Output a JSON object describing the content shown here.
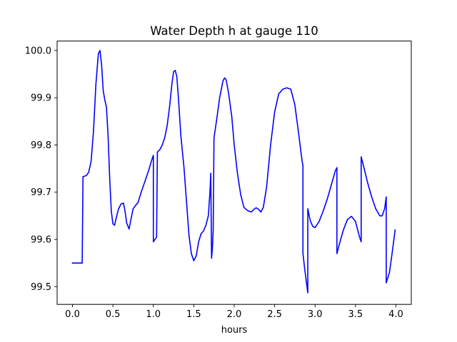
{
  "chart_data": {
    "type": "line",
    "title": "Water Depth h at gauge 110",
    "xlabel": "hours",
    "ylabel": "",
    "xlim": [
      -0.19,
      4.19
    ],
    "ylim": [
      99.4625,
      100.02
    ],
    "grid": false,
    "xticks": [
      0.0,
      0.5,
      1.0,
      1.5,
      2.0,
      2.5,
      3.0,
      3.5,
      4.0
    ],
    "xtick_labels": [
      "0.0",
      "0.5",
      "1.0",
      "1.5",
      "2.0",
      "2.5",
      "3.0",
      "3.5",
      "4.0"
    ],
    "yticks": [
      99.5,
      99.6,
      99.7,
      99.8,
      99.9,
      100.0
    ],
    "ytick_labels": [
      "99.5",
      "99.6",
      "99.7",
      "99.8",
      "99.9",
      "100.0"
    ],
    "series": [
      {
        "color": "#0000ff",
        "points": [
          [
            0.0,
            99.55
          ],
          [
            0.12,
            99.55
          ],
          [
            0.13,
            99.733
          ],
          [
            0.17,
            99.735
          ],
          [
            0.2,
            99.742
          ],
          [
            0.23,
            99.765
          ],
          [
            0.26,
            99.83
          ],
          [
            0.29,
            99.93
          ],
          [
            0.32,
            99.993
          ],
          [
            0.34,
            100.0
          ],
          [
            0.36,
            99.97
          ],
          [
            0.38,
            99.915
          ],
          [
            0.4,
            99.895
          ],
          [
            0.42,
            99.88
          ],
          [
            0.44,
            99.82
          ],
          [
            0.46,
            99.73
          ],
          [
            0.48,
            99.66
          ],
          [
            0.5,
            99.633
          ],
          [
            0.52,
            99.63
          ],
          [
            0.54,
            99.645
          ],
          [
            0.57,
            99.665
          ],
          [
            0.6,
            99.675
          ],
          [
            0.63,
            99.677
          ],
          [
            0.65,
            99.66
          ],
          [
            0.67,
            99.635
          ],
          [
            0.7,
            99.622
          ],
          [
            0.72,
            99.64
          ],
          [
            0.75,
            99.665
          ],
          [
            0.78,
            99.672
          ],
          [
            0.81,
            99.678
          ],
          [
            0.85,
            99.7
          ],
          [
            0.9,
            99.725
          ],
          [
            0.94,
            99.745
          ],
          [
            0.98,
            99.768
          ],
          [
            1.0,
            99.778
          ],
          [
            1.0,
            99.595
          ],
          [
            1.02,
            99.6
          ],
          [
            1.04,
            99.605
          ],
          [
            1.05,
            99.785
          ],
          [
            1.08,
            99.79
          ],
          [
            1.11,
            99.8
          ],
          [
            1.14,
            99.815
          ],
          [
            1.17,
            99.84
          ],
          [
            1.2,
            99.88
          ],
          [
            1.23,
            99.93
          ],
          [
            1.25,
            99.955
          ],
          [
            1.27,
            99.958
          ],
          [
            1.29,
            99.945
          ],
          [
            1.31,
            99.9
          ],
          [
            1.34,
            99.82
          ],
          [
            1.38,
            99.75
          ],
          [
            1.41,
            99.68
          ],
          [
            1.44,
            99.61
          ],
          [
            1.47,
            99.57
          ],
          [
            1.5,
            99.555
          ],
          [
            1.53,
            99.565
          ],
          [
            1.56,
            99.595
          ],
          [
            1.59,
            99.612
          ],
          [
            1.62,
            99.618
          ],
          [
            1.65,
            99.63
          ],
          [
            1.68,
            99.65
          ],
          [
            1.7,
            99.7
          ],
          [
            1.71,
            99.74
          ],
          [
            1.72,
            99.56
          ],
          [
            1.73,
            99.58
          ],
          [
            1.74,
            99.62
          ],
          [
            1.75,
            99.815
          ],
          [
            1.78,
            99.85
          ],
          [
            1.82,
            99.9
          ],
          [
            1.86,
            99.935
          ],
          [
            1.88,
            99.942
          ],
          [
            1.9,
            99.938
          ],
          [
            1.93,
            99.91
          ],
          [
            1.97,
            99.86
          ],
          [
            2.0,
            99.8
          ],
          [
            2.04,
            99.74
          ],
          [
            2.08,
            99.695
          ],
          [
            2.12,
            99.668
          ],
          [
            2.15,
            99.663
          ],
          [
            2.18,
            99.66
          ],
          [
            2.21,
            99.658
          ],
          [
            2.24,
            99.663
          ],
          [
            2.27,
            99.667
          ],
          [
            2.3,
            99.664
          ],
          [
            2.33,
            99.658
          ],
          [
            2.36,
            99.668
          ],
          [
            2.4,
            99.71
          ],
          [
            2.45,
            99.8
          ],
          [
            2.5,
            99.87
          ],
          [
            2.55,
            99.908
          ],
          [
            2.6,
            99.918
          ],
          [
            2.65,
            99.921
          ],
          [
            2.7,
            99.918
          ],
          [
            2.75,
            99.885
          ],
          [
            2.8,
            99.82
          ],
          [
            2.84,
            99.765
          ],
          [
            2.85,
            99.757
          ],
          [
            2.85,
            99.57
          ],
          [
            2.87,
            99.54
          ],
          [
            2.9,
            99.5
          ],
          [
            2.91,
            99.487
          ],
          [
            2.91,
            99.665
          ],
          [
            2.94,
            99.64
          ],
          [
            2.97,
            99.628
          ],
          [
            3.0,
            99.625
          ],
          [
            3.05,
            99.638
          ],
          [
            3.1,
            99.66
          ],
          [
            3.15,
            99.685
          ],
          [
            3.2,
            99.715
          ],
          [
            3.25,
            99.745
          ],
          [
            3.27,
            99.752
          ],
          [
            3.27,
            99.57
          ],
          [
            3.3,
            99.59
          ],
          [
            3.35,
            99.62
          ],
          [
            3.4,
            99.642
          ],
          [
            3.45,
            99.649
          ],
          [
            3.5,
            99.638
          ],
          [
            3.55,
            99.605
          ],
          [
            3.57,
            99.595
          ],
          [
            3.57,
            99.775
          ],
          [
            3.6,
            99.755
          ],
          [
            3.65,
            99.72
          ],
          [
            3.7,
            99.69
          ],
          [
            3.75,
            99.665
          ],
          [
            3.8,
            99.65
          ],
          [
            3.83,
            99.65
          ],
          [
            3.86,
            99.665
          ],
          [
            3.88,
            99.69
          ],
          [
            3.88,
            99.508
          ],
          [
            3.92,
            99.53
          ],
          [
            3.96,
            99.58
          ],
          [
            3.99,
            99.62
          ]
        ]
      }
    ]
  }
}
